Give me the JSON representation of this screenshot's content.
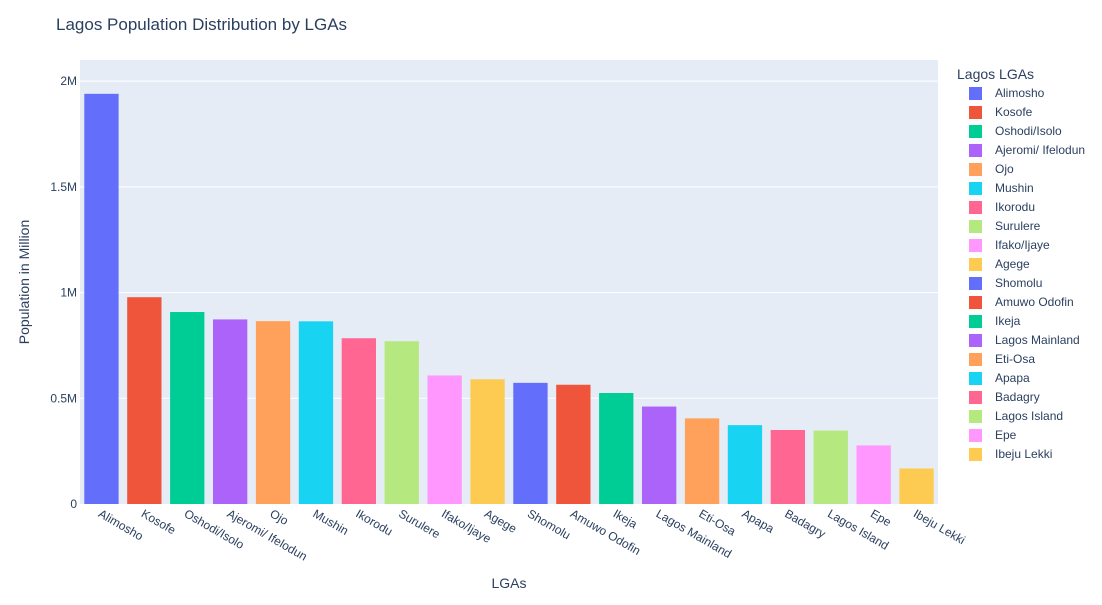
{
  "chart_data": {
    "type": "bar",
    "title": "Lagos Population Distribution by LGAs",
    "xlabel": "LGAs",
    "ylabel": "Population in Million",
    "ylim": [
      0,
      2100000
    ],
    "yticks": [
      {
        "value": 0,
        "label": "0"
      },
      {
        "value": 500000,
        "label": "0.5M"
      },
      {
        "value": 1000000,
        "label": "1M"
      },
      {
        "value": 1500000,
        "label": "1.5M"
      },
      {
        "value": 2000000,
        "label": "2M"
      }
    ],
    "legend_title": "Lagos LGAs",
    "legend_position": "right",
    "grid": true,
    "plot_background": "#E5ECF6",
    "categories": [
      "Alimosho",
      "Kosofe",
      "Oshodi/Isolo",
      "Ajeromi/ Ifelodun",
      "Ojo",
      "Mushin",
      "Ikorodu",
      "Surulere",
      "Ifako/Ijaye",
      "Agege",
      "Shomolu",
      "Amuwo Odofin",
      "Ikeja",
      "Lagos Mainland",
      "Eti-Osa",
      "Apapa",
      "Badagry",
      "Lagos Island",
      "Epe",
      "Ibeju Lekki"
    ],
    "values": [
      1940000,
      978000,
      908000,
      873000,
      865000,
      864000,
      784000,
      770000,
      608000,
      590000,
      573000,
      564000,
      525000,
      461000,
      405000,
      373000,
      350000,
      347000,
      277000,
      168000
    ],
    "colors": [
      "#636EFA",
      "#EF553B",
      "#00CC96",
      "#AB63FA",
      "#FFA15A",
      "#19D3F3",
      "#FF6692",
      "#B6E880",
      "#FF97FF",
      "#FECB52",
      "#636EFA",
      "#EF553B",
      "#00CC96",
      "#AB63FA",
      "#FFA15A",
      "#19D3F3",
      "#FF6692",
      "#B6E880",
      "#FF97FF",
      "#FECB52"
    ]
  }
}
